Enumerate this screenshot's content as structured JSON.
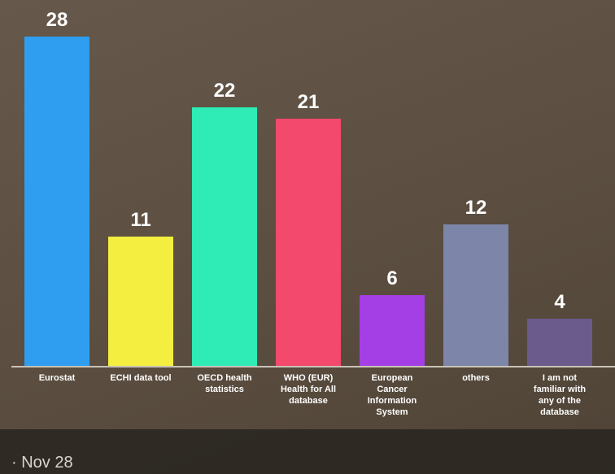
{
  "chart_data": {
    "type": "bar",
    "categories": [
      "Eurostat",
      "ECHI data tool",
      "OECD health statistics",
      "WHO (EUR) Health for All database",
      "European Cancer Information System",
      "others",
      "I am not familiar with any of the database"
    ],
    "values": [
      28,
      11,
      22,
      21,
      6,
      12,
      4
    ],
    "colors": [
      "#2f9ef0",
      "#f4ee40",
      "#2fecb6",
      "#f2496c",
      "#a43fe6",
      "#7d86a8",
      "#6b5a8c"
    ]
  },
  "footer": {
    "date": "· Nov 28"
  }
}
